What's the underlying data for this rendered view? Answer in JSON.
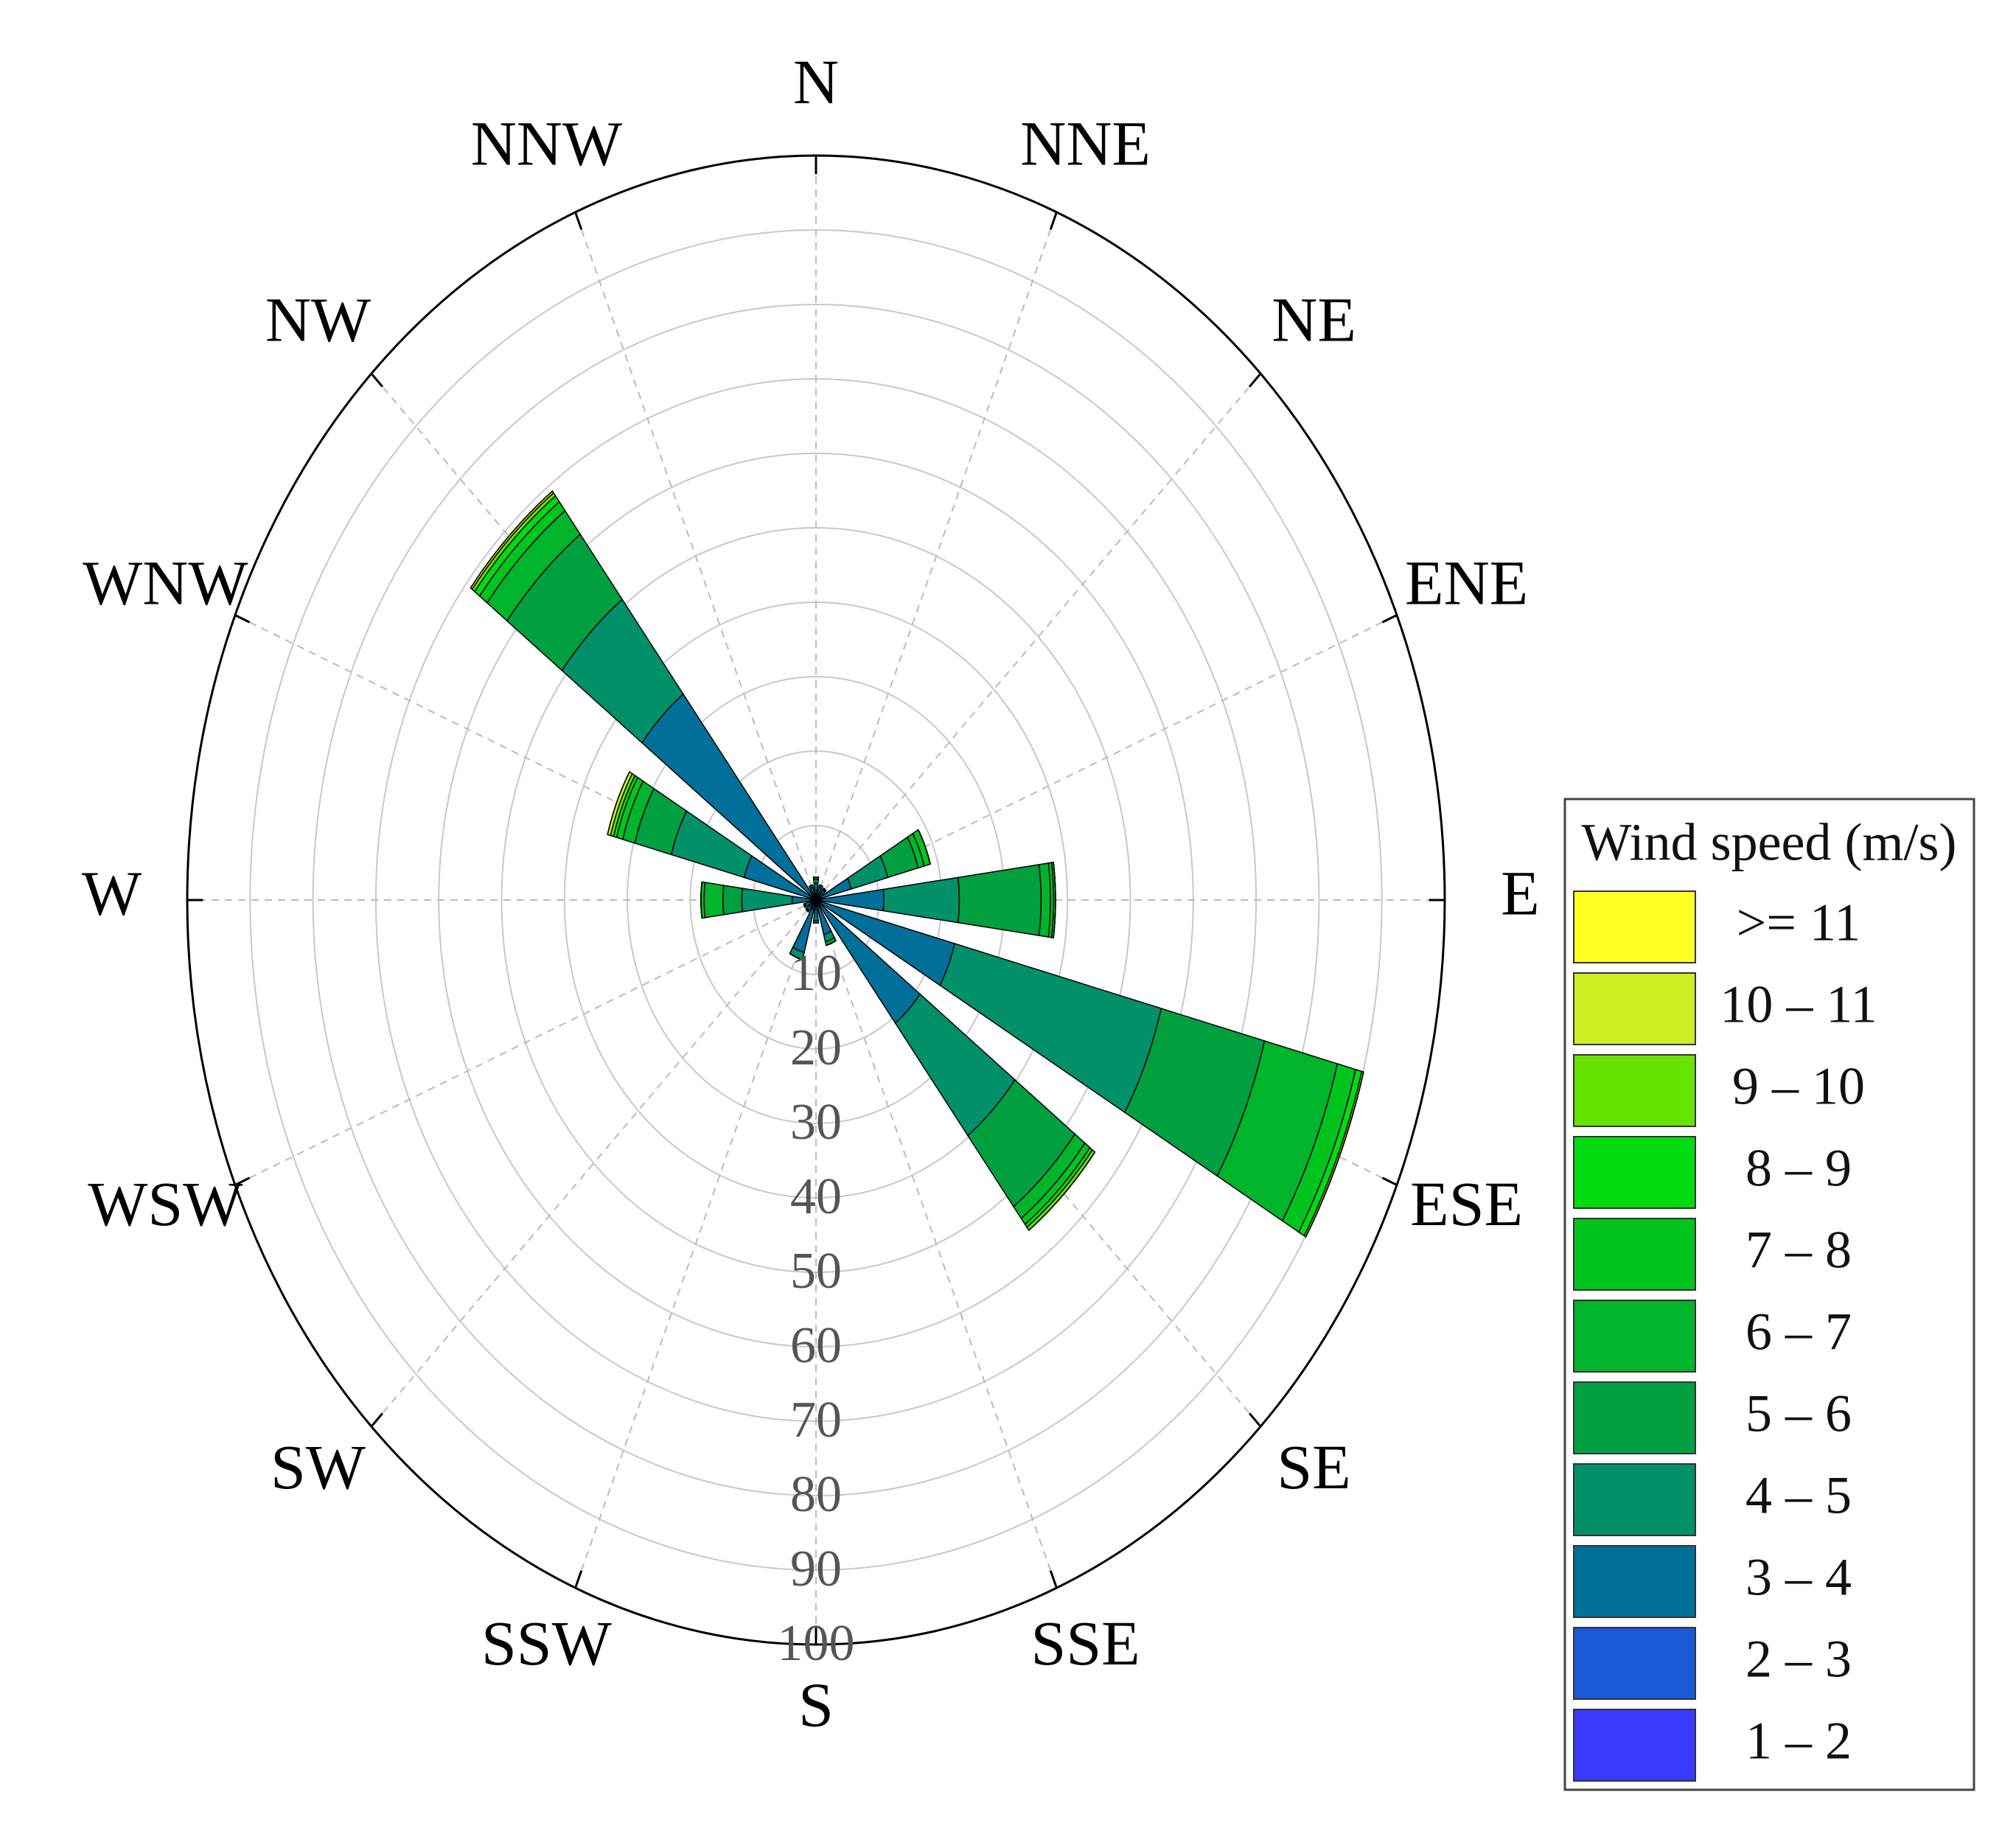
{
  "chart_data": {
    "type": "windrose",
    "directions": [
      "N",
      "NNE",
      "NE",
      "ENE",
      "E",
      "ESE",
      "SE",
      "SSE",
      "S",
      "SSW",
      "SW",
      "WSW",
      "W",
      "WNW",
      "NW",
      "NNW"
    ],
    "rlim": [
      0,
      100
    ],
    "rticks": [
      10,
      20,
      30,
      40,
      50,
      60,
      70,
      80,
      90,
      100
    ],
    "legend_title": "Wind speed (m/s)",
    "series": [
      {
        "name": "1 – 2",
        "color": "#3a3aff",
        "values": [
          0.3,
          0.3,
          0.3,
          0.3,
          0.3,
          0.3,
          0.3,
          0.3,
          0.3,
          0.3,
          0.3,
          0.3,
          0.3,
          0.3,
          0.3,
          0.3
        ]
      },
      {
        "name": "2 – 3",
        "color": "#1a5ad8",
        "values": [
          0.5,
          0.5,
          0.5,
          0.5,
          0.5,
          0.5,
          0.5,
          0.5,
          0.5,
          1,
          0.5,
          0.5,
          0.5,
          0.5,
          0.5,
          0.5
        ]
      },
      {
        "name": "3 – 4",
        "color": "#00709a",
        "values": [
          1.5,
          1,
          1,
          5,
          10,
          22,
          20,
          4,
          2,
          6,
          1,
          1,
          3,
          11,
          34,
          1
        ]
      },
      {
        "name": "4 – 5",
        "color": "#00906a",
        "values": [
          0.5,
          0.3,
          0.2,
          6,
          12,
          34,
          19,
          1,
          0.3,
          1,
          0.2,
          0.2,
          8,
          12,
          16,
          0.3
        ]
      },
      {
        "name": "5 – 6",
        "color": "#00a040",
        "values": [
          0.3,
          0,
          0,
          5,
          13,
          17,
          12,
          0.5,
          0,
          0,
          0,
          0,
          3,
          6,
          11,
          0
        ]
      },
      {
        "name": "6 – 7",
        "color": "#00b42c",
        "values": [
          0,
          0,
          0,
          1,
          1.5,
          12,
          2,
          0,
          0,
          0,
          0,
          0,
          3,
          2,
          4,
          0
        ]
      },
      {
        "name": "7 – 8",
        "color": "#00c41e",
        "values": [
          0,
          0,
          0,
          1,
          0.5,
          3,
          1,
          0,
          0,
          0,
          0,
          0,
          0.5,
          1,
          1.5,
          0
        ]
      },
      {
        "name": "8 – 9",
        "color": "#00dc10",
        "values": [
          0,
          0,
          0,
          0,
          0.3,
          1,
          0.5,
          0,
          0,
          0,
          0,
          0,
          0,
          0.5,
          1,
          0
        ]
      },
      {
        "name": "9 – 10",
        "color": "#66e400",
        "values": [
          0,
          0,
          0,
          0,
          0,
          0.3,
          0.5,
          0,
          0,
          0,
          0,
          0,
          0,
          0.5,
          0.5,
          0
        ]
      },
      {
        "name": "10 – 11",
        "color": "#ccee22",
        "values": [
          0,
          0,
          0,
          0,
          0,
          0,
          0,
          0,
          0,
          0,
          0,
          0,
          0,
          0.5,
          0.3,
          0
        ]
      },
      {
        "name": ">= 11",
        "color": "#ffff22",
        "values": [
          0,
          0,
          0,
          0,
          0,
          0,
          0,
          0,
          0,
          0,
          0,
          0,
          0,
          0,
          0,
          0
        ]
      }
    ]
  }
}
